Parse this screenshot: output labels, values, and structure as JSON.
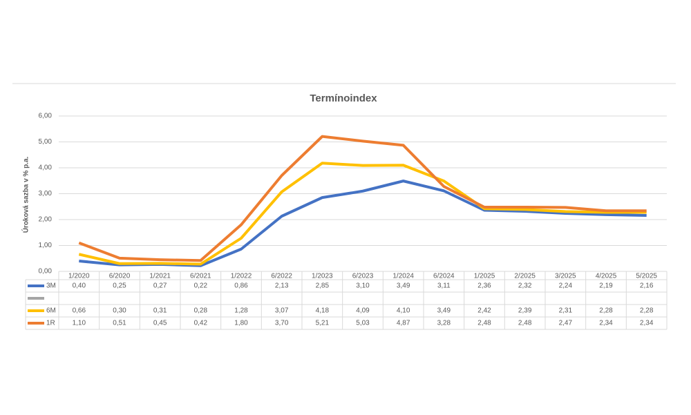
{
  "chart_data": {
    "type": "line",
    "title": "Termínoindex",
    "y_label": "Úroková sazba v % p.a.",
    "categories": [
      "1/2020",
      "6/2020",
      "1/2021",
      "6/2021",
      "1/2022",
      "6/2022",
      "1/2023",
      "6/2023",
      "1/2024",
      "6/2024",
      "1/2025",
      "2/2025",
      "3/2025",
      "4/2025",
      "5/2025"
    ],
    "series": [
      {
        "name": "3M",
        "color": "#4472c4",
        "values": [
          0.4,
          0.25,
          0.27,
          0.22,
          0.86,
          2.13,
          2.85,
          3.1,
          3.49,
          3.11,
          2.36,
          2.32,
          2.24,
          2.19,
          2.16
        ],
        "value_labels": [
          "0,40",
          "0,25",
          "0,27",
          "0,22",
          "0,86",
          "2,13",
          "2,85",
          "3,10",
          "3,49",
          "3,11",
          "2,36",
          "2,32",
          "2,24",
          "2,19",
          "2,16"
        ]
      },
      {
        "name": null,
        "color": "#a5a5a5",
        "values": [
          null,
          null,
          null,
          null,
          null,
          null,
          null,
          null,
          null,
          null,
          null,
          null,
          null,
          null,
          null
        ]
      },
      {
        "name": "6M",
        "color": "#ffc000",
        "values": [
          0.66,
          0.3,
          0.31,
          0.28,
          1.28,
          3.07,
          4.18,
          4.09,
          4.1,
          3.49,
          2.42,
          2.39,
          2.31,
          2.28,
          2.28
        ],
        "value_labels": [
          "0,66",
          "0,30",
          "0,31",
          "0,28",
          "1,28",
          "3,07",
          "4,18",
          "4,09",
          "4,10",
          "3,49",
          "2,42",
          "2,39",
          "2,31",
          "2,28",
          "2,28"
        ]
      },
      {
        "name": "1R",
        "color": "#ed7d31",
        "values": [
          1.1,
          0.51,
          0.45,
          0.42,
          1.8,
          3.7,
          5.21,
          5.03,
          4.87,
          3.28,
          2.48,
          2.48,
          2.47,
          2.34,
          2.34
        ],
        "value_labels": [
          "1,10",
          "0,51",
          "0,45",
          "0,42",
          "1,80",
          "3,70",
          "5,21",
          "5,03",
          "4,87",
          "3,28",
          "2,48",
          "2,48",
          "2,47",
          "2,34",
          "2,34"
        ]
      }
    ],
    "ylim": [
      0,
      6
    ],
    "yticks": [
      {
        "value": 0,
        "label": "0,00"
      },
      {
        "value": 1,
        "label": "1,00"
      },
      {
        "value": 2,
        "label": "2,00"
      },
      {
        "value": 3,
        "label": "3,00"
      },
      {
        "value": 4,
        "label": "4,00"
      },
      {
        "value": 5,
        "label": "5,00"
      },
      {
        "value": 6,
        "label": "6,00"
      }
    ],
    "grid": true
  }
}
